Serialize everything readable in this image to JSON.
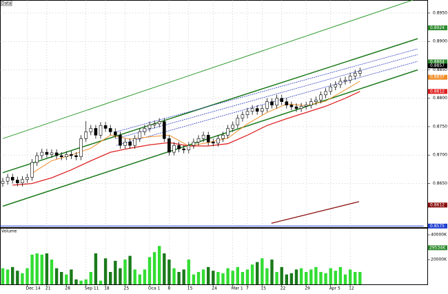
{
  "chart_data": {
    "type": "candlestick",
    "panel_title": "Data",
    "volume_title": "Volume",
    "categories": [
      null,
      null,
      null,
      null,
      null,
      "Dec 14",
      null,
      null,
      null,
      "21",
      null,
      null,
      null,
      "28",
      null,
      null,
      null,
      "Sep 11",
      null,
      null,
      null,
      "18",
      null,
      null,
      null,
      "25",
      null,
      null,
      null,
      null,
      "Oca 1",
      null,
      null,
      null,
      "8",
      null,
      null,
      null,
      "15",
      null,
      null,
      null,
      null,
      "24",
      null,
      null,
      null,
      "Mar 1",
      null,
      null,
      "7",
      null,
      null,
      "15",
      null,
      null,
      null,
      "22",
      null,
      null,
      null,
      null,
      "29",
      null,
      null,
      null,
      null,
      "Apr 5",
      null,
      null,
      null,
      "12",
      null,
      null
    ],
    "open": [
      0.865,
      0.8654,
      0.8661,
      0.8656,
      0.8651,
      0.8657,
      0.8661,
      0.8687,
      0.8699,
      0.8705,
      0.8701,
      0.8704,
      0.8699,
      0.8697,
      0.8701,
      0.8699,
      0.8697,
      0.8729,
      0.8741,
      0.8747,
      0.8735,
      0.8752,
      0.8747,
      0.8741,
      0.8735,
      0.8717,
      0.8723,
      0.8717,
      0.8729,
      0.8741,
      0.8747,
      0.8753,
      0.8755,
      0.8759,
      0.8729,
      0.8705,
      0.8717,
      0.8711,
      0.8709,
      0.8717,
      0.8723,
      0.8729,
      0.8735,
      0.8723,
      0.8721,
      0.8729,
      0.8735,
      0.8747,
      0.8753,
      0.8765,
      0.8771,
      0.8777,
      0.8782,
      0.8777,
      0.8782,
      0.8794,
      0.8788,
      0.88,
      0.8794,
      0.8788,
      0.8785,
      0.8782,
      0.8786,
      0.8788,
      0.8794,
      0.8797,
      0.8806,
      0.8812,
      0.882,
      0.8824,
      0.883,
      0.8832,
      0.8839,
      0.8844
    ],
    "high": [
      0.866,
      0.8667,
      0.8667,
      0.8662,
      0.8663,
      0.8667,
      0.8693,
      0.8705,
      0.8711,
      0.8711,
      0.871,
      0.871,
      0.8705,
      0.8707,
      0.8707,
      0.8705,
      0.8735,
      0.876,
      0.8753,
      0.8753,
      0.8758,
      0.8758,
      0.8753,
      0.8747,
      0.8741,
      0.8729,
      0.8729,
      0.8735,
      0.8747,
      0.8753,
      0.8759,
      0.8761,
      0.8765,
      0.8765,
      0.8735,
      0.8723,
      0.8723,
      0.8717,
      0.8723,
      0.8729,
      0.8735,
      0.8741,
      0.8741,
      0.8729,
      0.8735,
      0.8741,
      0.8753,
      0.8759,
      0.8771,
      0.8777,
      0.8783,
      0.8788,
      0.8788,
      0.8788,
      0.88,
      0.88,
      0.8806,
      0.8806,
      0.88,
      0.8794,
      0.8791,
      0.8792,
      0.8794,
      0.88,
      0.8803,
      0.8812,
      0.8818,
      0.8826,
      0.883,
      0.8836,
      0.8838,
      0.8845,
      0.885,
      0.8854
    ],
    "low": [
      0.8644,
      0.8648,
      0.865,
      0.8645,
      0.8645,
      0.8651,
      0.8655,
      0.8681,
      0.8693,
      0.8695,
      0.8695,
      0.8693,
      0.8691,
      0.8691,
      0.8693,
      0.8691,
      0.8691,
      0.8723,
      0.8735,
      0.8729,
      0.8729,
      0.8741,
      0.8735,
      0.8729,
      0.8711,
      0.8711,
      0.8711,
      0.8711,
      0.8723,
      0.8735,
      0.8741,
      0.8747,
      0.8749,
      0.8723,
      0.8699,
      0.8699,
      0.8705,
      0.8703,
      0.8703,
      0.8711,
      0.8717,
      0.8723,
      0.8717,
      0.8715,
      0.8715,
      0.8723,
      0.8729,
      0.8741,
      0.8747,
      0.8759,
      0.8765,
      0.8771,
      0.8771,
      0.8771,
      0.8776,
      0.8782,
      0.8782,
      0.8788,
      0.8782,
      0.8779,
      0.8776,
      0.8776,
      0.878,
      0.8782,
      0.8788,
      0.8791,
      0.88,
      0.8806,
      0.8814,
      0.8818,
      0.8824,
      0.8826,
      0.8833,
      0.8838
    ],
    "close": [
      0.8654,
      0.8661,
      0.8656,
      0.8651,
      0.8657,
      0.8661,
      0.8687,
      0.8699,
      0.8705,
      0.8701,
      0.8704,
      0.8699,
      0.8697,
      0.8701,
      0.8699,
      0.8697,
      0.8729,
      0.8741,
      0.8747,
      0.8735,
      0.8752,
      0.8747,
      0.8741,
      0.8735,
      0.8717,
      0.8723,
      0.8717,
      0.8729,
      0.8741,
      0.8747,
      0.8753,
      0.8755,
      0.8759,
      0.8729,
      0.8705,
      0.8717,
      0.8711,
      0.8709,
      0.8717,
      0.8723,
      0.8729,
      0.8735,
      0.8723,
      0.8721,
      0.8729,
      0.8735,
      0.8747,
      0.8753,
      0.8765,
      0.8771,
      0.8777,
      0.8782,
      0.8777,
      0.8782,
      0.8794,
      0.8788,
      0.88,
      0.8794,
      0.8788,
      0.8785,
      0.8782,
      0.8786,
      0.8788,
      0.8794,
      0.8797,
      0.8806,
      0.8812,
      0.882,
      0.8824,
      0.883,
      0.8832,
      0.8839,
      0.8844,
      0.8848
    ],
    "volume": [
      13000,
      12000,
      14000,
      11000,
      9000,
      13000,
      24000,
      25000,
      24000,
      25000,
      20000,
      13000,
      10000,
      8000,
      12000,
      4000,
      3000,
      4000,
      10000,
      25000,
      3000,
      21000,
      10000,
      19000,
      13000,
      20000,
      23000,
      12000,
      8000,
      12000,
      22000,
      26000,
      31000,
      25000,
      20000,
      13000,
      10000,
      12000,
      20000,
      8000,
      10000,
      12000,
      14000,
      11000,
      10000,
      9000,
      13000,
      11000,
      14000,
      10000,
      12000,
      16000,
      18000,
      21000,
      13000,
      20000,
      10000,
      14000,
      8000,
      9000,
      12000,
      13000,
      10000,
      12000,
      14000,
      10000,
      9000,
      13000,
      11000,
      14000,
      8000,
      12000,
      10000,
      10000
    ],
    "ylim": [
      0.8573,
      0.8973
    ],
    "yticks": [
      {
        "value": 0.865,
        "label": "0.8650"
      },
      {
        "value": 0.87,
        "label": "0.8700"
      },
      {
        "value": 0.875,
        "label": "0.8750"
      },
      {
        "value": 0.88,
        "label": "0.8800"
      },
      {
        "value": 0.885,
        "label": "0.8850"
      },
      {
        "value": 0.89,
        "label": "0.8900"
      },
      {
        "value": 0.895,
        "label": "0.8950"
      }
    ],
    "volume_ylim": [
      0,
      45000
    ],
    "volume_ticks": [
      {
        "value": 20000,
        "label": "20000K"
      },
      {
        "value": 40000,
        "label": "40000K"
      }
    ],
    "price_markers": [
      {
        "value": 0.8924,
        "color": "#2e8b2e"
      },
      {
        "value": 0.8864,
        "color": "#2e8b2e"
      },
      {
        "value": 0.8857,
        "color": "#000000"
      },
      {
        "value": 0.8837,
        "color": "#f08c28"
      },
      {
        "value": 0.8812,
        "color": "#e02020"
      },
      {
        "value": 0.8612,
        "color": "#8b1010"
      },
      {
        "value": 0.8575,
        "color": "#2040d0"
      }
    ],
    "volume_markers": [
      {
        "value": 29534,
        "label": "29534K",
        "color": "#2e8b2e"
      }
    ],
    "up_color": "#ffffff",
    "down_color": "#000000",
    "volume_up_color": "#33dd33",
    "volume_down_color": "#1a7a1a",
    "grid": true,
    "overlays": [
      {
        "color": "#2e9b2e",
        "width": 1,
        "dash": null,
        "x": [
          0,
          83.8
        ],
        "values": [
          0.8729,
          0.8973
        ]
      },
      {
        "color": "#1a7a1a",
        "width": 1.5,
        "dash": null,
        "x": [
          0,
          84.8
        ],
        "values": [
          0.8669,
          0.8905
        ]
      },
      {
        "color": "#1a7a1a",
        "width": 1.5,
        "dash": null,
        "x": [
          0,
          84.8
        ],
        "values": [
          0.861,
          0.885
        ]
      },
      {
        "color": "#3040c0",
        "width": 0.8,
        "dash": "2,1",
        "x": [
          23.2,
          84.8
        ],
        "values": [
          0.8741,
          0.8887
        ]
      },
      {
        "color": "#3040c0",
        "width": 0.8,
        "dash": "2,1",
        "x": [
          23.2,
          84.8
        ],
        "values": [
          0.8729,
          0.8877
        ]
      },
      {
        "color": "#3040c0",
        "width": 0.8,
        "dash": "2,1",
        "x": [
          23.2,
          84.8
        ],
        "values": [
          0.8717,
          0.8865
        ]
      },
      {
        "color": "#f08c28",
        "width": 1,
        "dash": null,
        "x": [
          6,
          10,
          14,
          18,
          22,
          26,
          30,
          34,
          38,
          42,
          46,
          50,
          54,
          58,
          62,
          66,
          70,
          73
        ],
        "values": [
          0.8668,
          0.869,
          0.87,
          0.8712,
          0.8735,
          0.8728,
          0.8732,
          0.8735,
          0.8716,
          0.8722,
          0.873,
          0.8755,
          0.8775,
          0.879,
          0.8787,
          0.8795,
          0.8815,
          0.883
        ]
      },
      {
        "color": "#e02020",
        "width": 1.3,
        "dash": null,
        "x": [
          2,
          6,
          10,
          14,
          18,
          22,
          26,
          30,
          34,
          38,
          42,
          46,
          50,
          54,
          58,
          62,
          66,
          70,
          73
        ],
        "values": [
          0.8647,
          0.865,
          0.866,
          0.8674,
          0.869,
          0.8705,
          0.8712,
          0.8718,
          0.8722,
          0.8716,
          0.8716,
          0.872,
          0.8735,
          0.8752,
          0.8764,
          0.8775,
          0.8786,
          0.88,
          0.8812
        ]
      },
      {
        "color": "#8b1010",
        "width": 1.3,
        "dash": null,
        "x": [
          54.9,
          72.8
        ],
        "values": [
          0.858,
          0.8618
        ]
      },
      {
        "color": "#2040d0",
        "width": 1,
        "dash": null,
        "x": [
          -1,
          86
        ],
        "values": [
          0.8575,
          0.8575
        ]
      }
    ]
  }
}
